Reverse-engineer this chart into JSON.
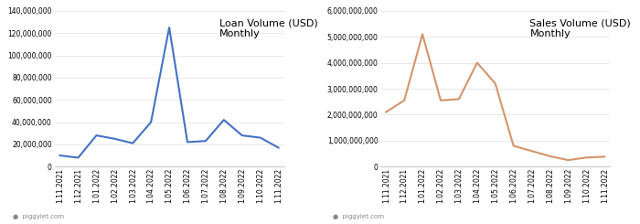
{
  "loan_labels": [
    "1.11.2021",
    "1.12.2021",
    "1.01.2022",
    "1.02.2022",
    "1.03.2022",
    "1.04.2022",
    "1.05.2022",
    "1.06.2022",
    "1.07.2022",
    "1.08.2022",
    "1.09.2022",
    "1.10.2022",
    "1.11.2022"
  ],
  "loan_values": [
    10000000,
    8000000,
    28000000,
    25000000,
    21000000,
    40000000,
    125000000,
    22000000,
    23000000,
    42000000,
    28000000,
    26000000,
    17000000
  ],
  "loan_color": "#4472C4",
  "loan_title": "Loan Volume (USD)\nMonthly",
  "loan_ylim": [
    0,
    140000000
  ],
  "loan_yticks": [
    0,
    20000000,
    40000000,
    60000000,
    80000000,
    100000000,
    120000000,
    140000000
  ],
  "sales_labels": [
    "1.11.2021",
    "1.12.2021",
    "1.01.2022",
    "1.02.2022",
    "1.03.2022",
    "1.04.2022",
    "1.05.2022",
    "1.06.2022",
    "1.07.2022",
    "1.08.2022",
    "1.09.2022",
    "1.10.2022",
    "1.11.2022"
  ],
  "sales_values": [
    2100000000,
    2550000000,
    5100000000,
    2550000000,
    2600000000,
    4000000000,
    3200000000,
    800000000,
    600000000,
    400000000,
    250000000,
    350000000,
    380000000
  ],
  "sales_color": "#D4956A",
  "sales_title": "Sales Volume (USD)\nMonthly",
  "sales_ylim": [
    0,
    6000000000
  ],
  "sales_yticks": [
    0,
    1000000000,
    2000000000,
    3000000000,
    4000000000,
    5000000000,
    6000000000
  ],
  "watermark_text": "piggylet.com",
  "tick_fontsize": 5.5,
  "title_fontsize": 8,
  "line_width": 1.5,
  "bg_color": "#ffffff"
}
